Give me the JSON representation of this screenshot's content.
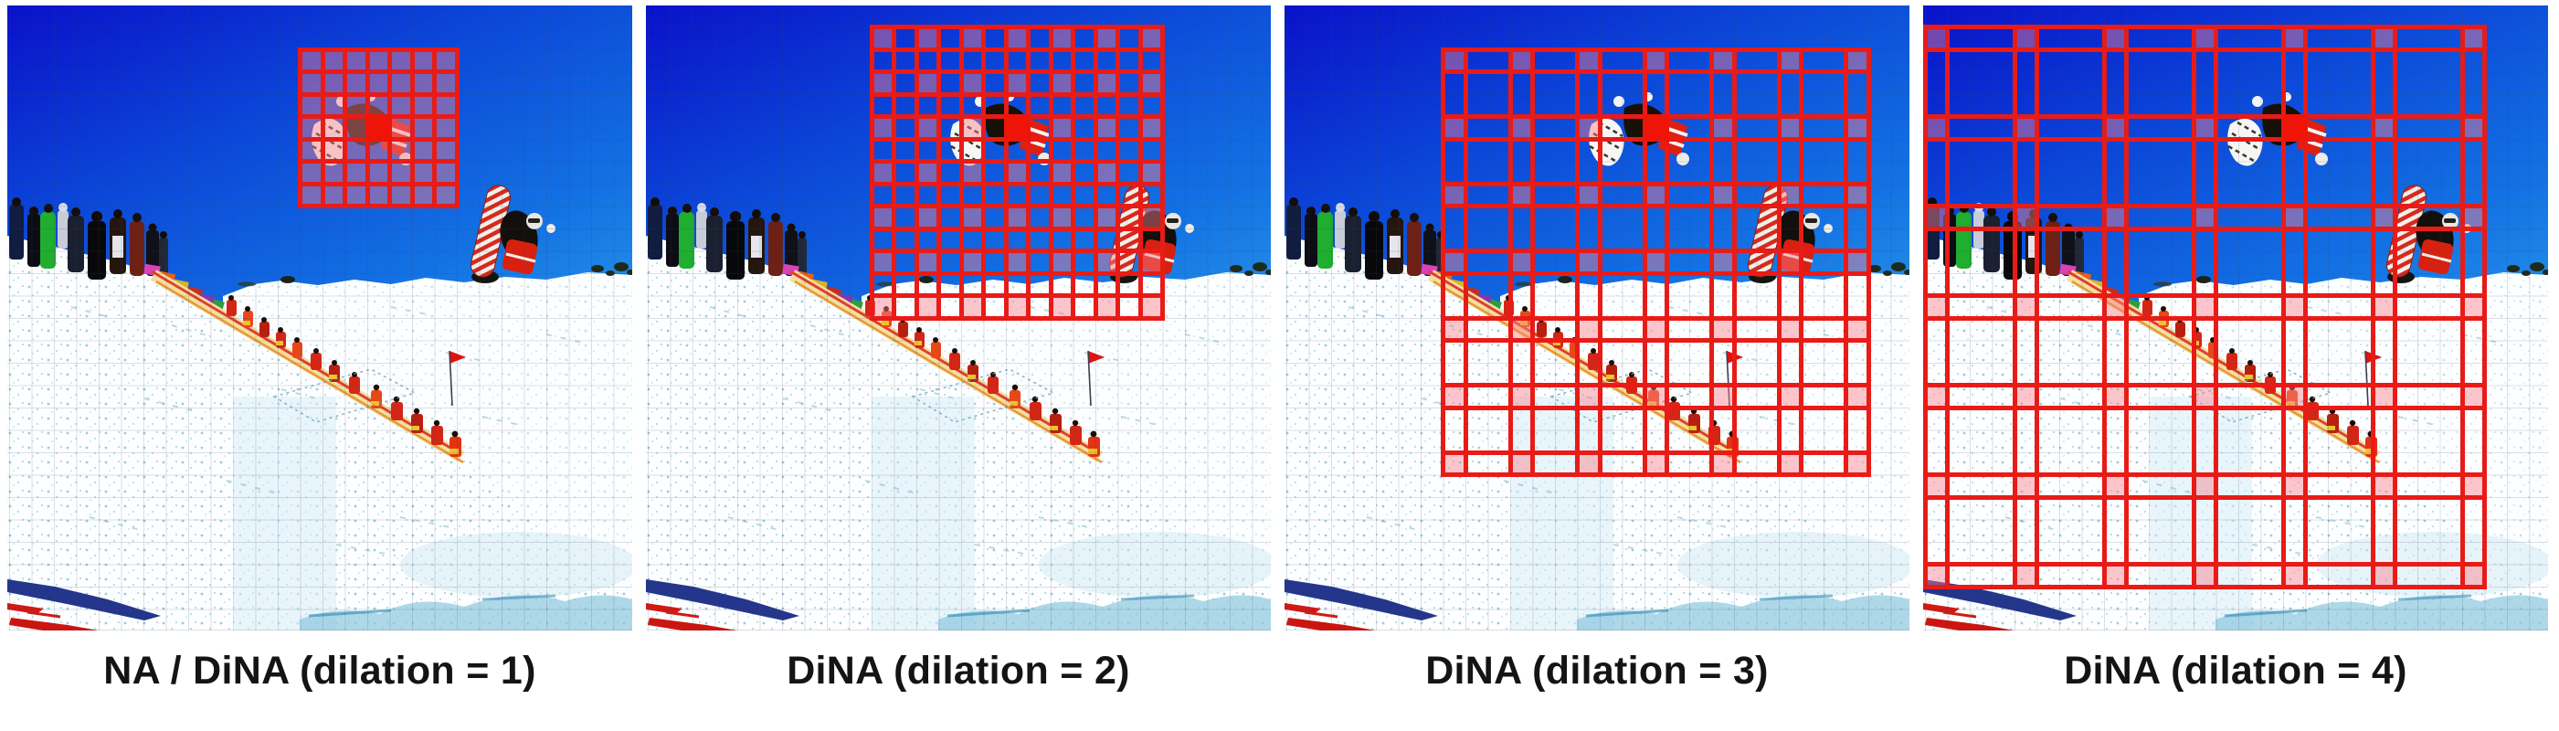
{
  "figure": {
    "panels": [
      {
        "caption": "NA / DiNA (dilation = 1)",
        "dilation": 1,
        "cols": [
          13,
          14,
          15,
          16,
          17,
          18,
          19
        ],
        "rows": [
          2,
          3,
          4,
          5,
          6,
          7,
          8
        ]
      },
      {
        "caption": "DiNA (dilation = 2)",
        "dilation": 2,
        "cols": [
          10,
          12,
          14,
          16,
          18,
          20,
          22
        ],
        "rows": [
          1,
          3,
          5,
          7,
          9,
          11,
          13
        ]
      },
      {
        "caption": "DiNA (dilation = 3)",
        "dilation": 3,
        "cols": [
          7,
          10,
          13,
          16,
          19,
          22,
          25
        ],
        "rows": [
          2,
          5,
          8,
          11,
          14,
          17,
          20
        ]
      },
      {
        "caption": "DiNA (dilation = 4)",
        "dilation": 4,
        "cols": [
          0,
          4,
          8,
          12,
          16,
          20,
          24
        ],
        "rows": [
          1,
          5,
          9,
          13,
          17,
          21,
          25
        ]
      }
    ],
    "query": {
      "col": 16,
      "row": 5
    },
    "window_cells": 7,
    "colors": {
      "grid_line": "#e81b17",
      "query_fill": "#ef1408",
      "key_fill": "rgba(250,128,140,0.45)",
      "caption_text": "#141414"
    }
  }
}
